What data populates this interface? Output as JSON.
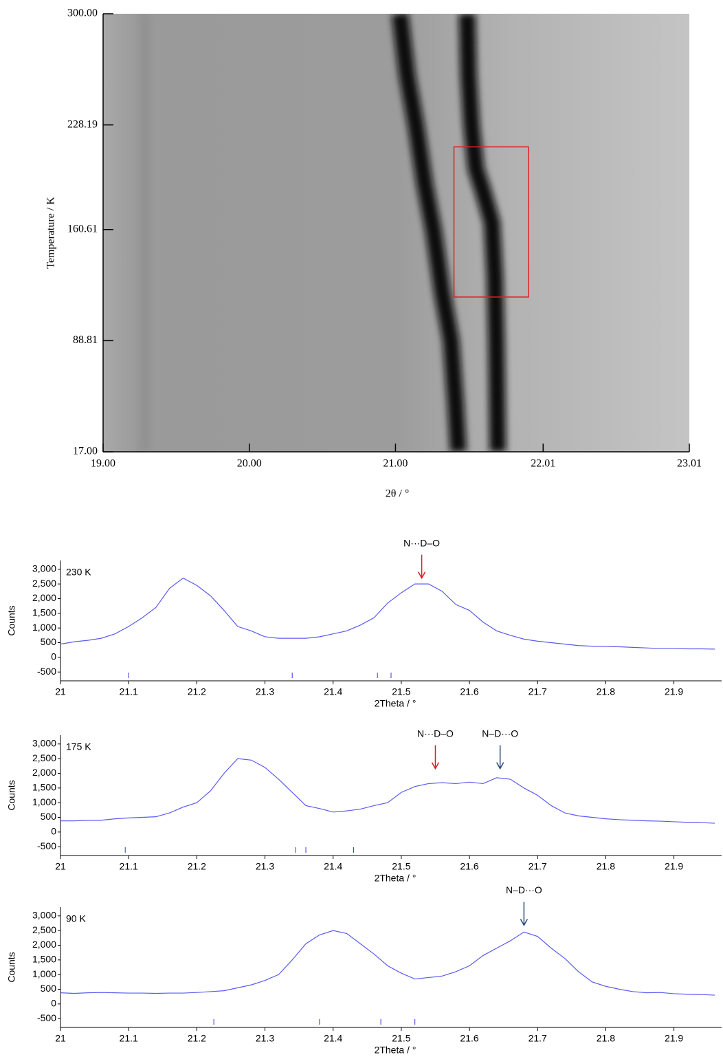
{
  "chart_data": [
    {
      "type": "intensity_map",
      "xlabel": "2θ / °",
      "ylabel": "Temperature / K",
      "xlim": [
        19,
        23.01
      ],
      "ylim": [
        17,
        300
      ],
      "xticks": [
        {
          "value": 19,
          "label": "19.00"
        },
        {
          "value": 20,
          "label": "20.00"
        },
        {
          "value": 21,
          "label": "21.00"
        },
        22.01,
        23.01
      ],
      "yticks": [
        {
          "value": 17,
          "label": "17.00"
        },
        88.81,
        160.61,
        228.19,
        {
          "value": 300,
          "label": "300.00"
        }
      ],
      "series": [
        {
          "color": "#111111",
          "x": [
            21.03,
            21.08,
            21.14,
            21.2,
            21.26,
            21.32,
            21.38,
            21.41,
            21.43
          ],
          "y": [
            300,
            260,
            228,
            190,
            160,
            120,
            88.8,
            50,
            17
          ]
        },
        {
          "color": "#111111",
          "x": [
            21.49,
            21.5,
            21.52,
            21.55,
            21.6,
            21.66,
            21.68,
            21.69,
            21.7
          ],
          "y": [
            300,
            260,
            228,
            200,
            185,
            165,
            130,
            88.8,
            17
          ]
        }
      ],
      "highlight": {
        "xlim": [
          21.4,
          21.91
        ],
        "ylim": [
          117,
          214
        ],
        "color": "#e02020"
      }
    },
    {
      "type": "line",
      "label": "230 K",
      "xlabel": "2Theta / °",
      "ylabel": "Counts",
      "xlim": [
        21,
        21.97
      ],
      "ylim": [
        -800,
        3300
      ],
      "xticks": [
        21,
        21.1,
        21.2,
        21.3,
        21.4,
        21.5,
        21.6,
        21.7,
        21.8,
        21.9
      ],
      "yticks": [
        -500,
        0,
        500,
        {
          "value": 1000,
          "label": "1,000"
        },
        {
          "value": 1500,
          "label": "1,500"
        },
        {
          "value": 2000,
          "label": "2,000"
        },
        {
          "value": 2500,
          "label": "2,500"
        },
        {
          "value": 3000,
          "label": "3,000"
        }
      ],
      "x": [
        21.0,
        21.02,
        21.04,
        21.06,
        21.08,
        21.1,
        21.12,
        21.14,
        21.16,
        21.18,
        21.2,
        21.22,
        21.24,
        21.26,
        21.28,
        21.3,
        21.32,
        21.34,
        21.36,
        21.38,
        21.4,
        21.42,
        21.44,
        21.46,
        21.48,
        21.5,
        21.52,
        21.54,
        21.56,
        21.58,
        21.6,
        21.62,
        21.64,
        21.66,
        21.68,
        21.7,
        21.72,
        21.74,
        21.76,
        21.78,
        21.8,
        21.82,
        21.84,
        21.86,
        21.88,
        21.9,
        21.92,
        21.94,
        21.96
      ],
      "series": [
        {
          "color": "#5a5af0",
          "values": [
            450,
            530,
            580,
            650,
            800,
            1050,
            1350,
            1700,
            2350,
            2700,
            2450,
            2100,
            1600,
            1050,
            900,
            700,
            650,
            650,
            650,
            700,
            800,
            900,
            1100,
            1350,
            1850,
            2200,
            2500,
            2500,
            2250,
            1800,
            1600,
            1200,
            900,
            750,
            620,
            550,
            500,
            450,
            400,
            380,
            370,
            360,
            340,
            320,
            300,
            300,
            290,
            290,
            280
          ]
        }
      ],
      "reflections": {
        "color": "#3333dd",
        "x": [
          21.1,
          21.34,
          21.465,
          21.485
        ]
      },
      "annotations": [
        {
          "text": "N···D–O",
          "x": 21.53,
          "y": 2700,
          "color": "#e8191a"
        }
      ]
    },
    {
      "type": "line",
      "label": "175 K",
      "xlabel": "2Theta / °",
      "ylabel": "Counts",
      "xlim": [
        21,
        21.97
      ],
      "ylim": [
        -800,
        3300
      ],
      "xticks": [
        21,
        21.1,
        21.2,
        21.3,
        21.4,
        21.5,
        21.6,
        21.7,
        21.8,
        21.9
      ],
      "yticks": [
        -500,
        0,
        500,
        {
          "value": 1000,
          "label": "1,000"
        },
        {
          "value": 1500,
          "label": "1,500"
        },
        {
          "value": 2000,
          "label": "2,000"
        },
        {
          "value": 2500,
          "label": "2,500"
        },
        {
          "value": 3000,
          "label": "3,000"
        }
      ],
      "x": [
        21.0,
        21.02,
        21.04,
        21.06,
        21.08,
        21.1,
        21.12,
        21.14,
        21.16,
        21.18,
        21.2,
        21.22,
        21.24,
        21.26,
        21.28,
        21.3,
        21.32,
        21.34,
        21.36,
        21.38,
        21.4,
        21.42,
        21.44,
        21.46,
        21.48,
        21.5,
        21.52,
        21.54,
        21.56,
        21.58,
        21.6,
        21.62,
        21.64,
        21.66,
        21.68,
        21.7,
        21.72,
        21.74,
        21.76,
        21.78,
        21.8,
        21.82,
        21.84,
        21.86,
        21.88,
        21.9,
        21.92,
        21.94,
        21.96
      ],
      "series": [
        {
          "color": "#5a5af0",
          "values": [
            380,
            380,
            400,
            400,
            450,
            480,
            500,
            520,
            650,
            850,
            1000,
            1400,
            2000,
            2500,
            2450,
            2200,
            1800,
            1350,
            900,
            800,
            680,
            720,
            780,
            900,
            1000,
            1350,
            1550,
            1650,
            1680,
            1650,
            1700,
            1650,
            1850,
            1800,
            1500,
            1250,
            900,
            650,
            550,
            500,
            450,
            420,
            400,
            380,
            370,
            350,
            330,
            320,
            300
          ]
        }
      ],
      "reflections": {
        "color": "#3333dd",
        "x": [
          21.095,
          21.345,
          21.36,
          21.43
        ]
      },
      "annotations": [
        {
          "text": "N···D–O",
          "x": 21.55,
          "y": 2160,
          "color": "#e8191a"
        },
        {
          "text": "N–D···O",
          "x": 21.645,
          "y": 2160,
          "color": "#2e4a7a"
        }
      ]
    },
    {
      "type": "line",
      "label": "90 K",
      "xlabel": "2Theta / °",
      "ylabel": "Counts",
      "xlim": [
        21,
        21.97
      ],
      "ylim": [
        -800,
        3300
      ],
      "xticks": [
        21,
        21.1,
        21.2,
        21.3,
        21.4,
        21.5,
        21.6,
        21.7,
        21.8,
        21.9
      ],
      "yticks": [
        -500,
        0,
        500,
        {
          "value": 1000,
          "label": "1,000"
        },
        {
          "value": 1500,
          "label": "1,500"
        },
        {
          "value": 2000,
          "label": "2,000"
        },
        {
          "value": 2500,
          "label": "2,500"
        },
        {
          "value": 3000,
          "label": "3,000"
        }
      ],
      "x": [
        21.0,
        21.02,
        21.04,
        21.06,
        21.08,
        21.1,
        21.12,
        21.14,
        21.16,
        21.18,
        21.2,
        21.22,
        21.24,
        21.26,
        21.28,
        21.3,
        21.32,
        21.34,
        21.36,
        21.38,
        21.4,
        21.42,
        21.44,
        21.46,
        21.48,
        21.5,
        21.52,
        21.54,
        21.56,
        21.58,
        21.6,
        21.62,
        21.64,
        21.66,
        21.68,
        21.7,
        21.72,
        21.74,
        21.76,
        21.78,
        21.8,
        21.82,
        21.84,
        21.86,
        21.88,
        21.9,
        21.92,
        21.94,
        21.96
      ],
      "series": [
        {
          "color": "#5a5af0",
          "values": [
            380,
            360,
            380,
            390,
            380,
            370,
            370,
            360,
            370,
            370,
            390,
            420,
            450,
            550,
            650,
            800,
            1000,
            1500,
            2050,
            2350,
            2500,
            2400,
            2050,
            1700,
            1300,
            1050,
            850,
            900,
            950,
            1100,
            1300,
            1650,
            1900,
            2150,
            2450,
            2300,
            1900,
            1550,
            1100,
            750,
            600,
            500,
            420,
            380,
            390,
            350,
            330,
            320,
            300
          ]
        }
      ],
      "reflections": {
        "color": "#3333dd",
        "x": [
          21.225,
          21.38,
          21.47,
          21.52
        ]
      },
      "annotations": [
        {
          "text": "N–D···O",
          "x": 21.68,
          "y": 2680,
          "color": "#2e4a7a"
        }
      ]
    }
  ]
}
